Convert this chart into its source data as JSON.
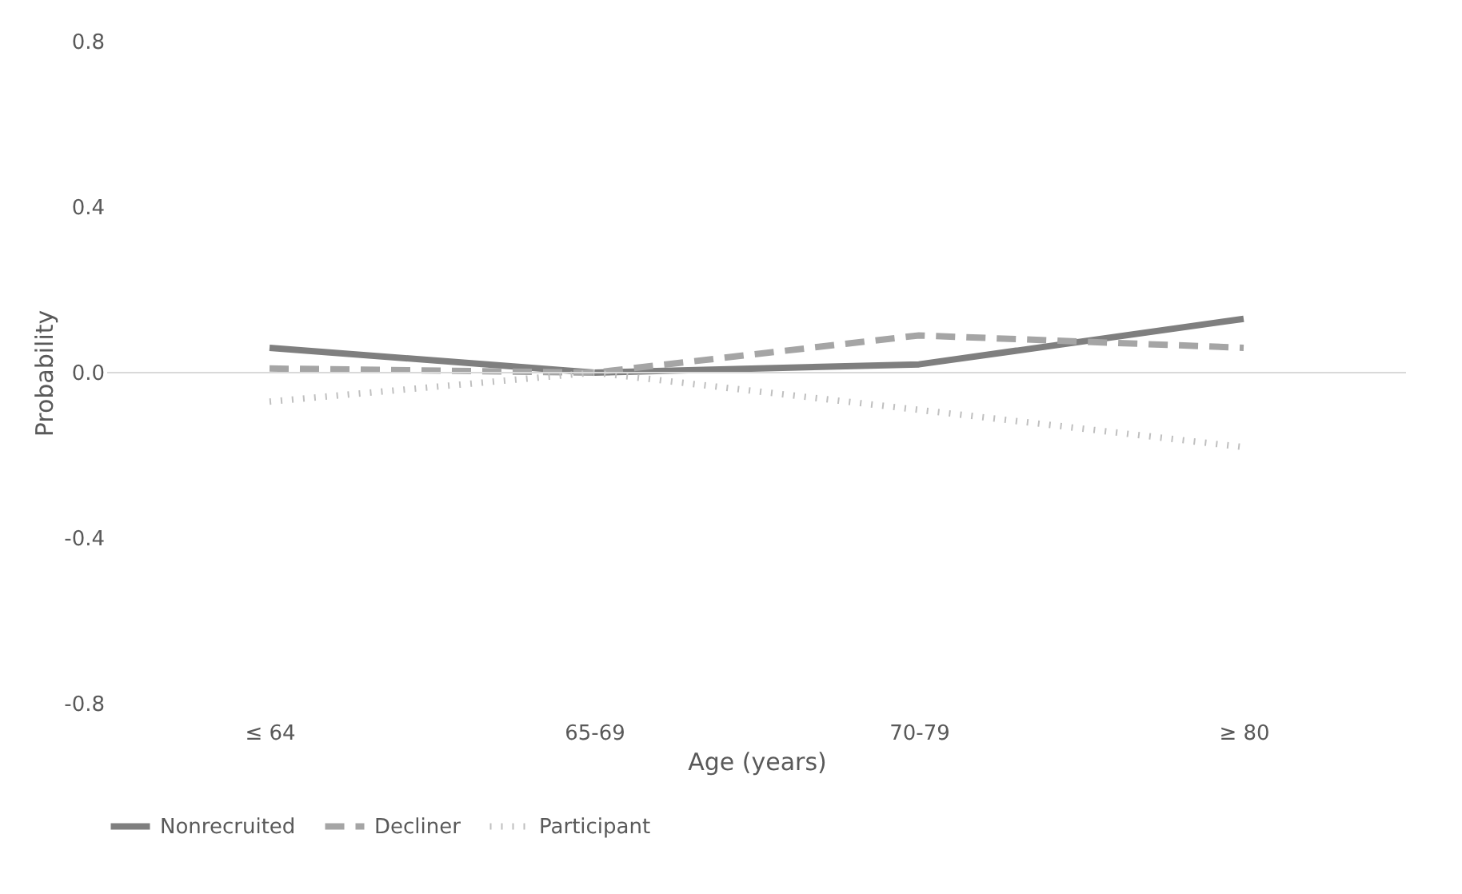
{
  "chart_data": {
    "type": "line",
    "xlabel": "Age (years)",
    "ylabel": "Probability",
    "categories": [
      "≤ 64",
      "65-69",
      "70-79",
      "≥ 80"
    ],
    "series": [
      {
        "name": "Nonrecruited",
        "color": "#7f7f7f",
        "line_style": "solid",
        "values": [
          0.06,
          0.0,
          0.02,
          0.13
        ]
      },
      {
        "name": "Decliner",
        "color": "#a5a5a5",
        "line_style": "dashed",
        "values": [
          0.01,
          0.0,
          0.09,
          0.06
        ]
      },
      {
        "name": "Participant",
        "color": "#bfbfbf",
        "line_style": "dotted",
        "values": [
          -0.07,
          0.0,
          -0.09,
          -0.18
        ]
      }
    ],
    "ylim": [
      -0.8,
      0.8
    ],
    "yticks": [
      -0.8,
      -0.4,
      {
        "value": 0,
        "label": "0.0"
      },
      0.4,
      0.8
    ],
    "grid": false,
    "legend": "bottom",
    "marker": "none",
    "ref_lines": [
      {
        "axis": "y",
        "value": 0,
        "color": "#d9d9d9"
      }
    ]
  }
}
